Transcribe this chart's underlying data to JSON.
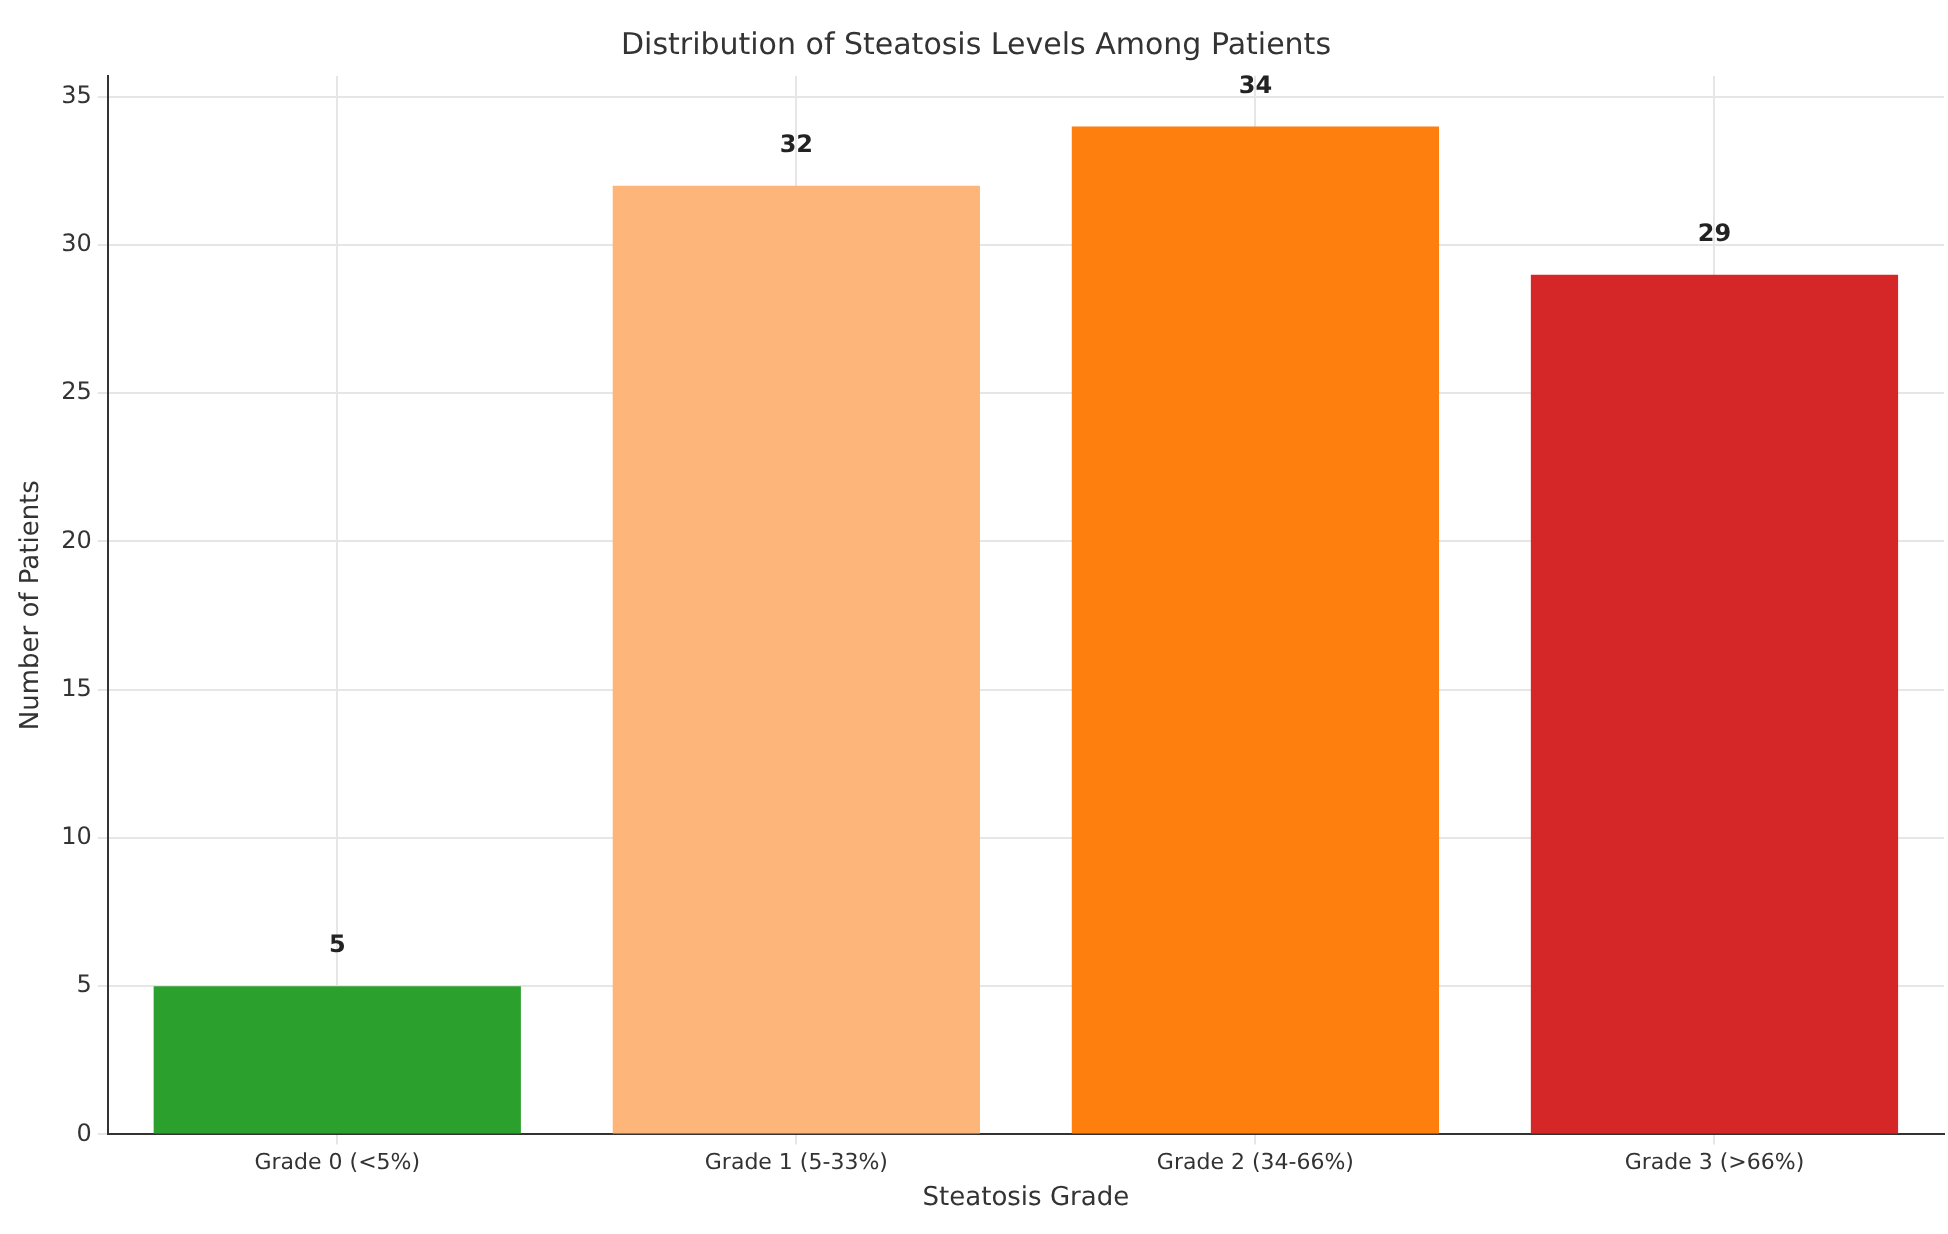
{
  "chart_data": {
    "type": "bar",
    "title": "Distribution of Steatosis Levels Among Patients",
    "xlabel": "Steatosis Grade",
    "ylabel": "Number of Patients",
    "categories": [
      "Grade 0 (<5%)",
      "Grade 1 (5-33%)",
      "Grade 2 (34-66%)",
      "Grade 3 (>66%)"
    ],
    "values": [
      5,
      32,
      34,
      29
    ],
    "colors": [
      "#2ca02c",
      "#fdb57a",
      "#ff7f0e",
      "#d62728"
    ],
    "ylim": [
      0,
      35.7
    ],
    "yticks": [
      0,
      5,
      10,
      15,
      20,
      25,
      30,
      35
    ],
    "grid": true,
    "data_labels": true
  }
}
